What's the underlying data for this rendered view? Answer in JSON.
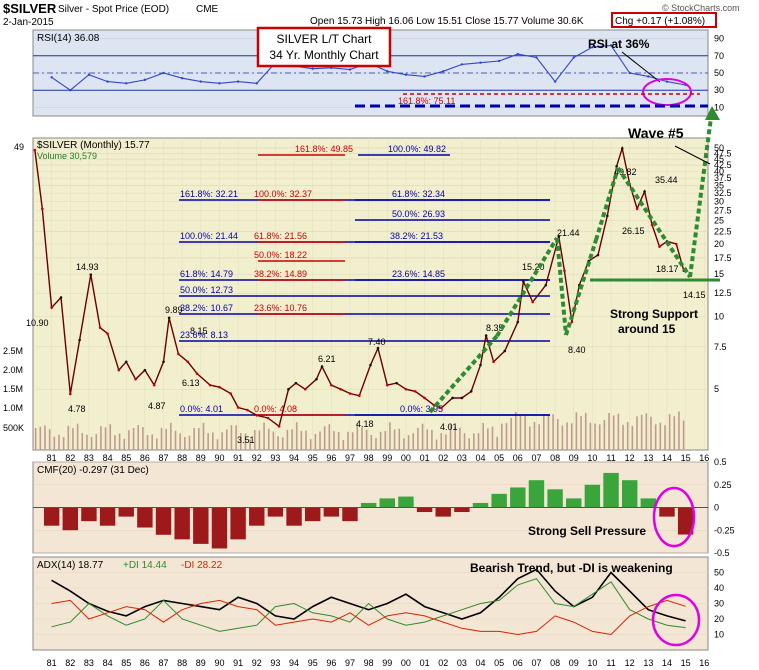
{
  "header": {
    "symbol": "$SILVER",
    "name": "Silver - Spot Price (EOD)",
    "exchange": "CME",
    "date": "2-Jan-2015",
    "ohlc": "Open 15.73  High 16.06  Low 15.51  Close 15.77  Volume 30.6K",
    "chg": "Chg +0.17 (+1.08%)",
    "chg_color": "#cc0000",
    "watermark": "© StockCharts.com"
  },
  "colors": {
    "panel_bg_main": "#f2efcf",
    "panel_bg_rsi": "#dde5f2",
    "panel_bg_cmf": "#f3e6d4",
    "price_up": "#111111",
    "price_down": "#cc0000",
    "fib_blue": "#0000aa",
    "fib_red": "#cc0000",
    "wave_green": "#2e8b2e",
    "annot_magenta": "#e000e0",
    "cmf_pos": "#3aa53a",
    "cmf_neg": "#9e1a1a"
  },
  "annotations": {
    "title_box_line1": "SILVER L/T Chart",
    "title_box_line2": "34 Yr. Monthly Chart",
    "rsi_note": "RSI at 36%",
    "wave_note": "Wave #5",
    "support_line1": "Strong Support",
    "support_line2": "around 15",
    "cmf_note": "Strong Sell Pressure",
    "adx_note": "Bearish Trend, but -DI is weakening"
  },
  "chart_data": [
    {
      "type": "line",
      "panel": "RSI",
      "legend": "RSI(14) 36.08",
      "ylim": [
        0,
        100
      ],
      "yticks": [
        10,
        30,
        50,
        70,
        90
      ],
      "overbought": 70,
      "oversold": 30,
      "x": [
        1981,
        1982,
        1983,
        1984,
        1985,
        1986,
        1987,
        1988,
        1989,
        1990,
        1991,
        1992,
        1993,
        1994,
        1995,
        1996,
        1997,
        1998,
        1999,
        2000,
        2001,
        2002,
        2003,
        2004,
        2005,
        2006,
        2007,
        2008,
        2009,
        2010,
        2011,
        2012,
        2013,
        2014,
        2015
      ],
      "values": [
        45,
        30,
        48,
        40,
        38,
        42,
        50,
        44,
        40,
        38,
        40,
        38,
        62,
        58,
        55,
        56,
        54,
        62,
        52,
        48,
        46,
        52,
        60,
        62,
        64,
        72,
        68,
        40,
        68,
        80,
        82,
        50,
        46,
        40,
        36
      ]
    },
    {
      "type": "line",
      "panel": "price",
      "legend": "$SILVER (Monthly) 15.77",
      "scale": "log",
      "ylim": [
        2.8,
        55
      ],
      "yticks": [
        5.0,
        7.5,
        10.0,
        12.5,
        15.0,
        17.5,
        20.0,
        22.5,
        25.0,
        27.5,
        30.0,
        32.5,
        35.0,
        37.5,
        40.0,
        42.5,
        45.0,
        47.5,
        50.0
      ],
      "xlabels": [
        "81",
        "82",
        "83",
        "84",
        "85",
        "86",
        "87",
        "88",
        "89",
        "90",
        "91",
        "92",
        "93",
        "94",
        "95",
        "96",
        "97",
        "98",
        "99",
        "00",
        "01",
        "02",
        "03",
        "04",
        "05",
        "06",
        "07",
        "08",
        "09",
        "10",
        "11",
        "12",
        "13",
        "14",
        "15",
        "16"
      ],
      "x": [
        1980.1,
        1980.5,
        1981.0,
        1981.5,
        1982.0,
        1982.5,
        1983.1,
        1983.6,
        1984.0,
        1984.6,
        1985.0,
        1985.5,
        1986.0,
        1986.5,
        1987.0,
        1987.3,
        1987.8,
        1988.3,
        1988.8,
        1989.5,
        1990.0,
        1990.6,
        1991.0,
        1991.5,
        1992.0,
        1992.6,
        1993.2,
        1993.7,
        1994.1,
        1994.6,
        1995.2,
        1995.5,
        1996.0,
        1996.5,
        1997.0,
        1997.5,
        1998.1,
        1998.5,
        1999.0,
        1999.5,
        2000.0,
        2000.5,
        2001.0,
        2001.5,
        2001.9,
        2002.5,
        2003.0,
        2003.5,
        2004.0,
        2004.3,
        2004.7,
        2005.3,
        2006.0,
        2006.3,
        2006.8,
        2007.5,
        2008.2,
        2008.5,
        2008.9,
        2009.3,
        2009.8,
        2010.3,
        2010.8,
        2011.3,
        2011.6,
        2012.0,
        2012.4,
        2012.8,
        2013.2,
        2013.6,
        2014.0,
        2014.5,
        2014.9,
        2015.0
      ],
      "values": [
        49,
        28,
        10.9,
        12,
        4.78,
        8,
        14.93,
        9,
        8.5,
        6,
        6.5,
        5.5,
        6,
        5.2,
        6.5,
        9.89,
        7,
        6.5,
        5.8,
        5.2,
        5.1,
        4.8,
        4.2,
        4.1,
        3.9,
        3.8,
        3.51,
        5.0,
        5.3,
        5.0,
        5.5,
        6.21,
        5.2,
        5.0,
        4.8,
        4.7,
        6.3,
        7.4,
        5.2,
        5.3,
        5.0,
        4.9,
        4.6,
        4.3,
        4.18,
        4.6,
        4.6,
        4.9,
        6.3,
        8.35,
        6.5,
        7.2,
        9.5,
        14.0,
        11.5,
        13.5,
        21.44,
        15.5,
        9.5,
        13.5,
        17.0,
        18.0,
        26.15,
        42.0,
        49.82,
        35.44,
        28.0,
        33.0,
        24.0,
        19.5,
        20.5,
        20.0,
        15.5,
        15.77
      ]
    },
    {
      "type": "bar",
      "panel": "volume",
      "legend": "Volume 30,579",
      "ytick_labels": [
        "500K",
        "1.0M",
        "1.5M",
        "2.0M",
        "2.5M"
      ]
    },
    {
      "type": "line",
      "panel": "price-pivots",
      "labels": [
        "49",
        "10.90",
        "4.78",
        "14.93",
        "4.87",
        "6.13",
        "9.89",
        "8.15",
        "3.51",
        "6.21",
        "7.40",
        "4.18",
        "4.01",
        "8.35",
        "15.20",
        "21.44",
        "8.40",
        "26.15",
        "49.82",
        "35.44",
        "18.17",
        "14.15"
      ]
    },
    {
      "type": "table",
      "panel": "fibonacci",
      "rows": [
        {
          "label": "161.8%: 49.85",
          "color": "red"
        },
        {
          "label": "100.0%: 49.82",
          "color": "blue"
        },
        {
          "label": "161.8%: 32.21",
          "color": "blue"
        },
        {
          "label": "100.0%: 32.37",
          "color": "red"
        },
        {
          "label": "61.8%: 32.34",
          "color": "blue"
        },
        {
          "label": "50.0%: 26.93",
          "color": "blue"
        },
        {
          "label": "100.0%: 21.44",
          "color": "blue"
        },
        {
          "label": "61.8%: 21.56",
          "color": "red"
        },
        {
          "label": "38.2%: 21.53",
          "color": "blue"
        },
        {
          "label": "50.0%: 18.22",
          "color": "red"
        },
        {
          "label": "61.8%: 14.79",
          "color": "blue"
        },
        {
          "label": "38.2%: 14.89",
          "color": "red"
        },
        {
          "label": "23.6%: 14.85",
          "color": "blue"
        },
        {
          "label": "50.0%: 12.73",
          "color": "blue"
        },
        {
          "label": "38.2%: 10.67",
          "color": "blue"
        },
        {
          "label": "23.6%: 10.76",
          "color": "red"
        },
        {
          "label": "23.6%: 8.13",
          "color": "blue"
        },
        {
          "label": "0.0%: 4.01",
          "color": "blue"
        },
        {
          "label": "0.0%: 4.08",
          "color": "red"
        },
        {
          "label": "0.0%: 3.95",
          "color": "blue"
        },
        {
          "label": "161.8%: 75.11",
          "color": "red"
        }
      ]
    },
    {
      "type": "bar",
      "panel": "CMF",
      "legend": "CMF(20) -0.297 (31 Dec)",
      "ylim": [
        -0.5,
        0.5
      ],
      "yticks": [
        0.5,
        0.25,
        0.0,
        -0.25,
        -0.5
      ],
      "x": [
        1981,
        1982,
        1983,
        1984,
        1985,
        1986,
        1987,
        1988,
        1989,
        1990,
        1991,
        1992,
        1993,
        1994,
        1995,
        1996,
        1997,
        1998,
        1999,
        2000,
        2001,
        2002,
        2003,
        2004,
        2005,
        2006,
        2007,
        2008,
        2009,
        2010,
        2011,
        2012,
        2013,
        2014,
        2015
      ],
      "values": [
        -0.2,
        -0.25,
        -0.15,
        -0.2,
        -0.1,
        -0.22,
        -0.3,
        -0.35,
        -0.4,
        -0.45,
        -0.35,
        -0.2,
        -0.1,
        -0.2,
        -0.15,
        -0.1,
        -0.15,
        0.05,
        0.1,
        0.12,
        -0.05,
        -0.1,
        -0.05,
        0.05,
        0.15,
        0.22,
        0.3,
        0.2,
        0.1,
        0.25,
        0.38,
        0.3,
        0.1,
        -0.1,
        -0.297
      ]
    },
    {
      "type": "line",
      "panel": "ADX",
      "legend_adx": "ADX(14) 18.77",
      "legend_pdi": "+DI 14.44",
      "legend_mdi": "-DI 28.22",
      "ylim": [
        0,
        60
      ],
      "yticks": [
        10,
        20,
        30,
        40,
        50
      ],
      "x": [
        1981,
        1982,
        1983,
        1984,
        1985,
        1986,
        1987,
        1988,
        1989,
        1990,
        1991,
        1992,
        1993,
        1994,
        1995,
        1996,
        1997,
        1998,
        1999,
        2000,
        2001,
        2002,
        2003,
        2004,
        2005,
        2006,
        2007,
        2008,
        2009,
        2010,
        2011,
        2012,
        2013,
        2014,
        2015
      ],
      "series": [
        {
          "name": "ADX(14)",
          "values": [
            45,
            38,
            30,
            25,
            22,
            28,
            32,
            30,
            28,
            26,
            34,
            30,
            22,
            20,
            28,
            34,
            30,
            26,
            30,
            36,
            28,
            24,
            20,
            24,
            34,
            46,
            52,
            38,
            28,
            34,
            50,
            38,
            26,
            22,
            18.77
          ]
        },
        {
          "name": "+DI",
          "values": [
            15,
            18,
            30,
            22,
            16,
            20,
            32,
            20,
            16,
            12,
            14,
            16,
            28,
            30,
            24,
            22,
            18,
            30,
            20,
            16,
            18,
            22,
            26,
            30,
            32,
            42,
            46,
            30,
            28,
            36,
            44,
            26,
            20,
            16,
            14.44
          ]
        },
        {
          "name": "-DI",
          "values": [
            30,
            32,
            20,
            24,
            28,
            26,
            18,
            26,
            30,
            32,
            28,
            26,
            16,
            18,
            20,
            18,
            24,
            16,
            22,
            24,
            22,
            18,
            14,
            12,
            12,
            10,
            12,
            22,
            18,
            12,
            10,
            22,
            28,
            32,
            28.22
          ]
        }
      ]
    }
  ]
}
